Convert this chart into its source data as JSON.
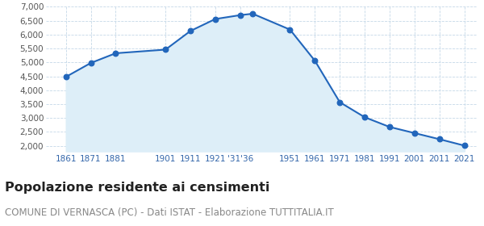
{
  "years": [
    1861,
    1871,
    1881,
    1901,
    1911,
    1921,
    1931,
    1936,
    1951,
    1961,
    1971,
    1981,
    1991,
    2001,
    2011,
    2021
  ],
  "population": [
    4480,
    4980,
    5330,
    5460,
    6130,
    6560,
    6700,
    6750,
    6180,
    5060,
    3570,
    3030,
    2680,
    2460,
    2240,
    2010
  ],
  "line_color": "#2266bb",
  "fill_color": "#ddeef8",
  "marker_color": "#2266bb",
  "background_color": "#ffffff",
  "grid_color": "#c5d8e8",
  "x_tick_color": "#3366aa",
  "y_tick_color": "#555555",
  "title": "Popolazione residente ai censimenti",
  "subtitle": "COMUNE DI VERNASCA (PC) - Dati ISTAT - Elaborazione TUTTITALIA.IT",
  "title_fontsize": 11.5,
  "subtitle_fontsize": 8.5,
  "ylim": [
    1800,
    7000
  ],
  "yticks": [
    2000,
    2500,
    3000,
    3500,
    4000,
    4500,
    5000,
    5500,
    6000,
    6500,
    7000
  ],
  "x_tick_positions": [
    1861,
    1871,
    1881,
    1901,
    1911,
    1921,
    1931,
    1951,
    1961,
    1971,
    1981,
    1991,
    2001,
    2011,
    2021
  ],
  "x_tick_labels": [
    "1861",
    "1871",
    "1881",
    "1901",
    "1911",
    "1921",
    "'31'36",
    "1951",
    "1961",
    "1971",
    "1981",
    "1991",
    "2001",
    "2011",
    "2021"
  ],
  "xlim": [
    1853,
    2026
  ]
}
